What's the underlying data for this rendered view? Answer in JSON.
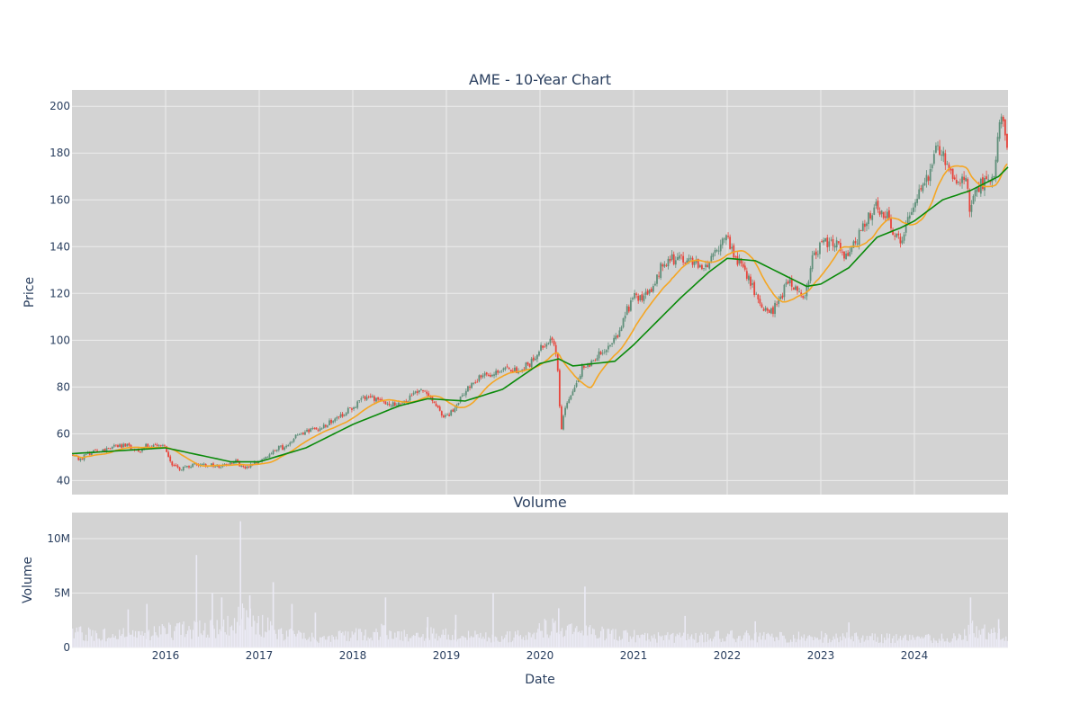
{
  "colors": {
    "plot_bg": "#d3d3d3",
    "grid": "#ececec",
    "text": "#2a3f5f",
    "up": "#5f8f7a",
    "down": "#e8453c",
    "ma_short": "#f5a623",
    "ma_long": "#0a8a0a",
    "volume": "#ebeaf5"
  },
  "chart_data": [
    {
      "type": "candlestick",
      "title": "AME - 10-Year Chart",
      "xlabel": "",
      "ylabel": "Price",
      "xlim": [
        2015.0,
        2025.0
      ],
      "ylim": [
        34,
        207
      ],
      "yticks": [
        40,
        60,
        80,
        100,
        120,
        140,
        160,
        180,
        200
      ],
      "xticks": [
        2016,
        2017,
        2018,
        2019,
        2020,
        2021,
        2022,
        2023,
        2024
      ],
      "grid": true,
      "price_path": [
        [
          2015.0,
          51
        ],
        [
          2015.08,
          49
        ],
        [
          2015.2,
          52
        ],
        [
          2015.35,
          53
        ],
        [
          2015.5,
          55
        ],
        [
          2015.6,
          55
        ],
        [
          2015.7,
          52
        ],
        [
          2015.8,
          55
        ],
        [
          2015.9,
          55
        ],
        [
          2016.0,
          54
        ],
        [
          2016.08,
          46
        ],
        [
          2016.15,
          45
        ],
        [
          2016.3,
          47
        ],
        [
          2016.45,
          47
        ],
        [
          2016.6,
          46
        ],
        [
          2016.75,
          48
        ],
        [
          2016.85,
          45
        ],
        [
          2016.95,
          48
        ],
        [
          2017.1,
          50
        ],
        [
          2017.2,
          54
        ],
        [
          2017.3,
          54
        ],
        [
          2017.38,
          59
        ],
        [
          2017.5,
          61
        ],
        [
          2017.65,
          62
        ],
        [
          2017.8,
          66
        ],
        [
          2017.95,
          70
        ],
        [
          2018.05,
          73
        ],
        [
          2018.12,
          76
        ],
        [
          2018.3,
          74
        ],
        [
          2018.45,
          72
        ],
        [
          2018.6,
          75
        ],
        [
          2018.75,
          79
        ],
        [
          2018.85,
          74
        ],
        [
          2018.92,
          70
        ],
        [
          2019.0,
          67
        ],
        [
          2019.1,
          72
        ],
        [
          2019.2,
          78
        ],
        [
          2019.35,
          84
        ],
        [
          2019.5,
          86
        ],
        [
          2019.6,
          88
        ],
        [
          2019.75,
          87
        ],
        [
          2019.9,
          90
        ],
        [
          2020.0,
          97
        ],
        [
          2020.1,
          100
        ],
        [
          2020.15,
          99
        ],
        [
          2020.2,
          85
        ],
        [
          2020.22,
          58
        ],
        [
          2020.25,
          68
        ],
        [
          2020.35,
          78
        ],
        [
          2020.45,
          88
        ],
        [
          2020.55,
          90
        ],
        [
          2020.6,
          93
        ],
        [
          2020.75,
          98
        ],
        [
          2020.85,
          103
        ],
        [
          2020.92,
          112
        ],
        [
          2021.0,
          118
        ],
        [
          2021.1,
          119
        ],
        [
          2021.2,
          122
        ],
        [
          2021.3,
          132
        ],
        [
          2021.4,
          135
        ],
        [
          2021.5,
          134
        ],
        [
          2021.6,
          136
        ],
        [
          2021.7,
          131
        ],
        [
          2021.8,
          133
        ],
        [
          2021.9,
          140
        ],
        [
          2022.0,
          144
        ],
        [
          2022.08,
          136
        ],
        [
          2022.2,
          128
        ],
        [
          2022.3,
          120
        ],
        [
          2022.45,
          111
        ],
        [
          2022.55,
          116
        ],
        [
          2022.65,
          126
        ],
        [
          2022.75,
          120
        ],
        [
          2022.82,
          116
        ],
        [
          2022.9,
          134
        ],
        [
          2023.0,
          140
        ],
        [
          2023.1,
          143
        ],
        [
          2023.2,
          140
        ],
        [
          2023.25,
          136
        ],
        [
          2023.4,
          144
        ],
        [
          2023.5,
          153
        ],
        [
          2023.6,
          157
        ],
        [
          2023.7,
          154
        ],
        [
          2023.8,
          144
        ],
        [
          2023.88,
          142
        ],
        [
          2023.95,
          154
        ],
        [
          2024.05,
          162
        ],
        [
          2024.15,
          170
        ],
        [
          2024.22,
          180
        ],
        [
          2024.3,
          181
        ],
        [
          2024.4,
          170
        ],
        [
          2024.5,
          169
        ],
        [
          2024.55,
          168
        ],
        [
          2024.6,
          154
        ],
        [
          2024.65,
          165
        ],
        [
          2024.75,
          168
        ],
        [
          2024.85,
          168
        ],
        [
          2024.88,
          185
        ],
        [
          2024.92,
          195
        ],
        [
          2024.96,
          190
        ],
        [
          2025.0,
          181
        ]
      ],
      "moving_average_long": [
        [
          2015.0,
          51.5
        ],
        [
          2016.0,
          54
        ],
        [
          2016.7,
          48
        ],
        [
          2017.0,
          48
        ],
        [
          2017.5,
          54
        ],
        [
          2018.0,
          64
        ],
        [
          2018.5,
          72
        ],
        [
          2018.8,
          75
        ],
        [
          2019.2,
          74
        ],
        [
          2019.6,
          79
        ],
        [
          2020.0,
          90
        ],
        [
          2020.2,
          92
        ],
        [
          2020.35,
          89
        ],
        [
          2020.8,
          91
        ],
        [
          2021.0,
          98
        ],
        [
          2021.5,
          118
        ],
        [
          2021.8,
          129
        ],
        [
          2022.0,
          135
        ],
        [
          2022.3,
          134
        ],
        [
          2022.6,
          128
        ],
        [
          2022.85,
          123
        ],
        [
          2023.0,
          124
        ],
        [
          2023.3,
          131
        ],
        [
          2023.6,
          144
        ],
        [
          2023.85,
          148
        ],
        [
          2024.0,
          151
        ],
        [
          2024.3,
          160
        ],
        [
          2024.6,
          164
        ],
        [
          2024.9,
          170
        ],
        [
          2025.0,
          174
        ]
      ]
    },
    {
      "type": "bar",
      "title": "Volume",
      "xlabel": "Date",
      "ylabel": "Volume",
      "xlim": [
        2015.0,
        2025.0
      ],
      "ylim": [
        0,
        12400000
      ],
      "yticks": [
        0,
        5000000,
        10000000
      ],
      "ytick_labels": [
        "0",
        "5M",
        "10M"
      ],
      "xticks": [
        2016,
        2017,
        2018,
        2019,
        2020,
        2021,
        2022,
        2023,
        2024
      ],
      "grid": true,
      "volume_path": [
        [
          2015.0,
          1.6
        ],
        [
          2015.5,
          1.4
        ],
        [
          2016.0,
          1.8
        ],
        [
          2016.3,
          2.0
        ],
        [
          2016.6,
          2.2
        ],
        [
          2016.8,
          3.5
        ],
        [
          2017.0,
          2.5
        ],
        [
          2017.3,
          1.6
        ],
        [
          2017.6,
          1.2
        ],
        [
          2018.0,
          1.4
        ],
        [
          2018.3,
          1.8
        ],
        [
          2018.6,
          1.2
        ],
        [
          2018.9,
          1.8
        ],
        [
          2019.1,
          1.5
        ],
        [
          2019.5,
          1.2
        ],
        [
          2019.9,
          1.3
        ],
        [
          2020.15,
          2.8
        ],
        [
          2020.3,
          2.0
        ],
        [
          2020.6,
          1.6
        ],
        [
          2021.0,
          1.3
        ],
        [
          2021.5,
          1.1
        ],
        [
          2022.0,
          1.3
        ],
        [
          2022.5,
          1.2
        ],
        [
          2023.0,
          1.2
        ],
        [
          2023.5,
          1.1
        ],
        [
          2024.0,
          1.0
        ],
        [
          2024.5,
          1.1
        ],
        [
          2024.65,
          2.2
        ],
        [
          2024.8,
          1.5
        ],
        [
          2025.0,
          1.4
        ]
      ],
      "volume_spikes": [
        [
          2015.6,
          3.5
        ],
        [
          2015.8,
          4.0
        ],
        [
          2016.33,
          8.5
        ],
        [
          2016.5,
          5.0
        ],
        [
          2016.6,
          4.6
        ],
        [
          2016.8,
          11.6
        ],
        [
          2016.9,
          4.8
        ],
        [
          2017.15,
          6.0
        ],
        [
          2017.35,
          4.0
        ],
        [
          2017.6,
          3.2
        ],
        [
          2018.35,
          4.6
        ],
        [
          2018.8,
          2.8
        ],
        [
          2019.1,
          3.0
        ],
        [
          2019.5,
          5.0
        ],
        [
          2020.2,
          3.6
        ],
        [
          2020.48,
          5.6
        ],
        [
          2021.55,
          2.9
        ],
        [
          2022.3,
          2.4
        ],
        [
          2023.3,
          2.3
        ],
        [
          2024.6,
          4.6
        ],
        [
          2024.9,
          2.6
        ]
      ]
    }
  ]
}
